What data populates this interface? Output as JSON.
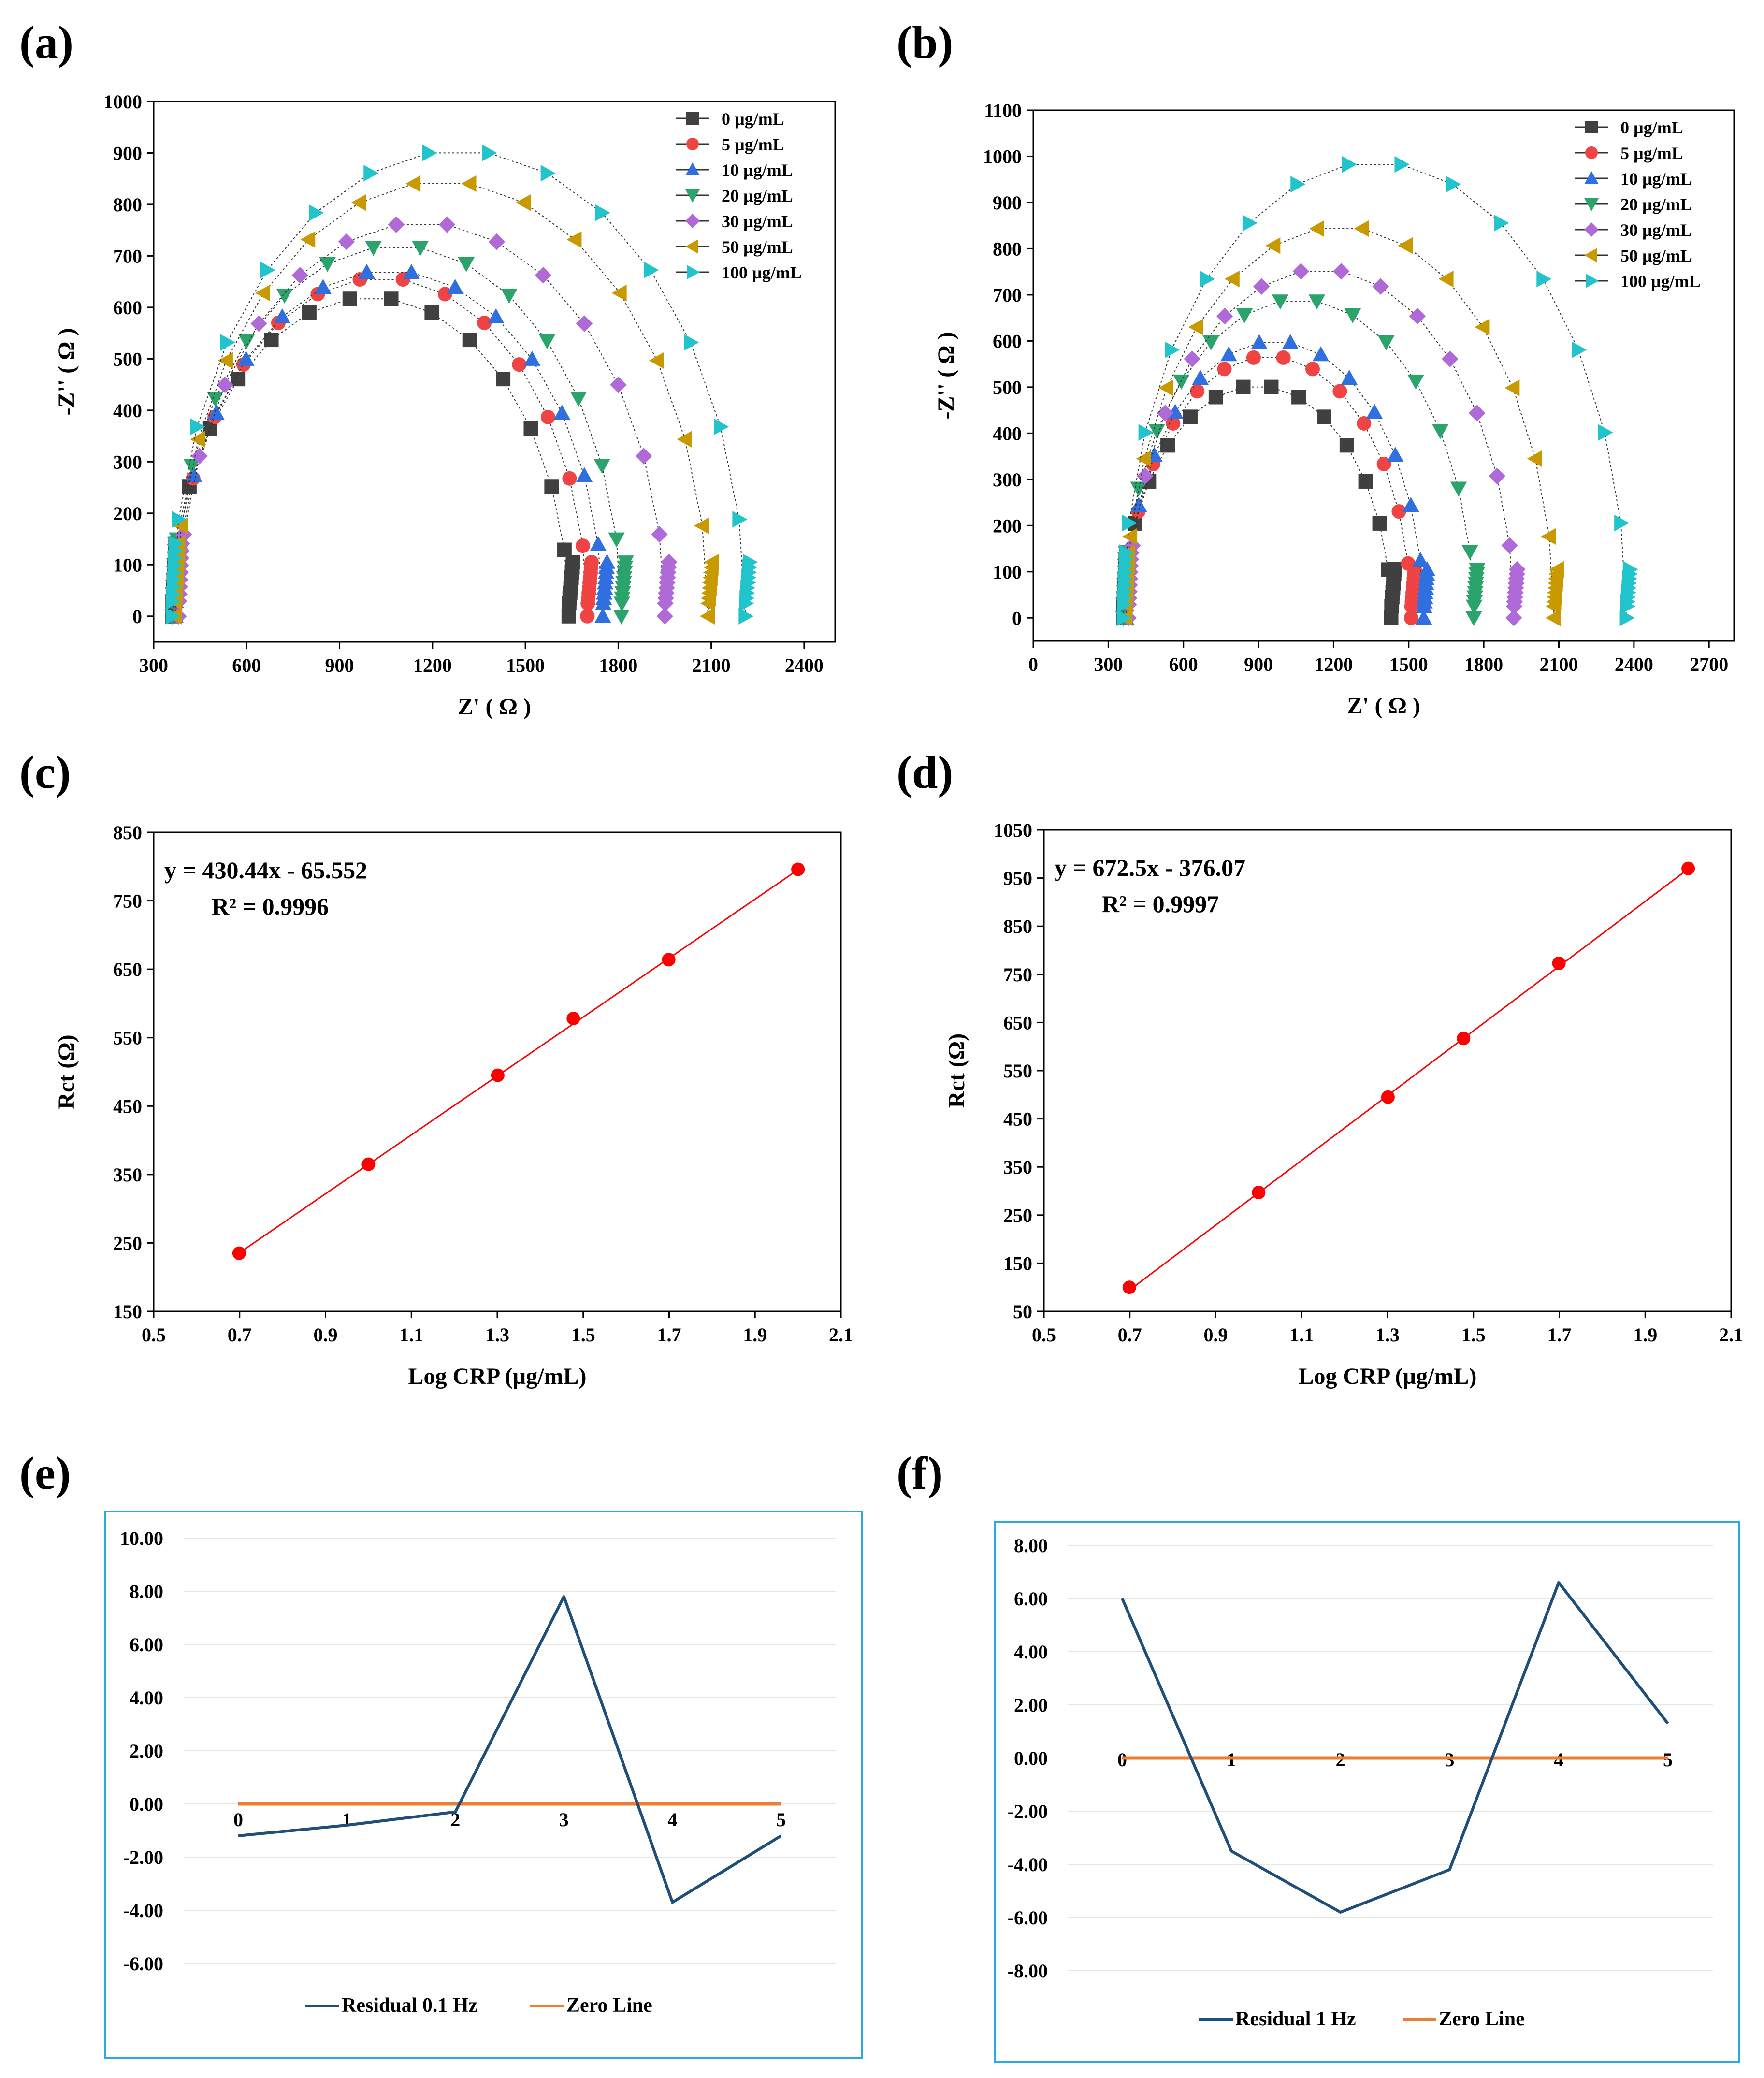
{
  "labels": {
    "a": "(a)",
    "b": "(b)",
    "c": "(c)",
    "d": "(d)",
    "e": "(e)",
    "f": "(f)"
  },
  "colors": {
    "0": "#404040",
    "5": "#f04444",
    "10": "#2f6fe0",
    "20": "#2aa46a",
    "30": "#b06ad8",
    "50": "#c89a00",
    "100": "#22c4cc",
    "fit": "#ff0000",
    "residual": "#1f4e79",
    "zero": "#ed7d31",
    "box": "#29abe2"
  },
  "chart_data": [
    {
      "id": "a",
      "type": "scatter",
      "xlabel": "Z' ( Ω )",
      "ylabel": "-Z'' ( Ω )",
      "xlim": [
        300,
        2500
      ],
      "ylim": [
        -50,
        1000
      ],
      "xticks": [
        "300",
        "600",
        "900",
        "1200",
        "1500",
        "1800",
        "2100",
        "2400"
      ],
      "yticks": [
        "0",
        "100",
        "200",
        "300",
        "400",
        "500",
        "600",
        "700",
        "800",
        "900",
        "1000"
      ],
      "legend_position": "top-right",
      "series": [
        {
          "name": "0 µg/mL",
          "key": "0",
          "marker": "square",
          "start": 360,
          "end": 1640,
          "peak": 620
        },
        {
          "name": "5 µg/mL",
          "key": "5",
          "marker": "circle",
          "start": 370,
          "end": 1700,
          "peak": 658
        },
        {
          "name": "10 µg/mL",
          "key": "10",
          "marker": "triangle-up",
          "start": 370,
          "end": 1750,
          "peak": 672
        },
        {
          "name": "20 µg/mL",
          "key": "20",
          "marker": "triangle-down",
          "start": 360,
          "end": 1810,
          "peak": 720
        },
        {
          "name": "30 µg/mL",
          "key": "30",
          "marker": "diamond",
          "start": 380,
          "end": 1950,
          "peak": 765
        },
        {
          "name": "50 µg/mL",
          "key": "50",
          "marker": "triangle-left",
          "start": 370,
          "end": 2090,
          "peak": 845
        },
        {
          "name": "100 µg/mL",
          "key": "100",
          "marker": "triangle-right",
          "start": 360,
          "end": 2210,
          "peak": 905
        }
      ]
    },
    {
      "id": "b",
      "type": "scatter",
      "xlabel": "Z' ( Ω )",
      "ylabel": "-Z'' ( Ω )",
      "xlim": [
        0,
        2800
      ],
      "ylim": [
        -50,
        1100
      ],
      "xticks": [
        "0",
        "300",
        "600",
        "900",
        "1200",
        "1500",
        "1800",
        "2100",
        "2400",
        "2700"
      ],
      "yticks": [
        "0",
        "100",
        "200",
        "300",
        "400",
        "500",
        "600",
        "700",
        "800",
        "900",
        "1000",
        "1100"
      ],
      "legend_position": "top-right",
      "series": [
        {
          "name": "0 µg/mL",
          "key": "0",
          "marker": "square",
          "start": 360,
          "end": 1430,
          "peak": 503
        },
        {
          "name": "5 µg/mL",
          "key": "5",
          "marker": "circle",
          "start": 370,
          "end": 1510,
          "peak": 567
        },
        {
          "name": "10 µg/mL",
          "key": "10",
          "marker": "triangle-up",
          "start": 370,
          "end": 1560,
          "peak": 600
        },
        {
          "name": "20 µg/mL",
          "key": "20",
          "marker": "triangle-down",
          "start": 360,
          "end": 1760,
          "peak": 690
        },
        {
          "name": "30 µg/mL",
          "key": "30",
          "marker": "diamond",
          "start": 380,
          "end": 1920,
          "peak": 755
        },
        {
          "name": "50 µg/mL",
          "key": "50",
          "marker": "triangle-left",
          "start": 370,
          "end": 2080,
          "peak": 848
        },
        {
          "name": "100 µg/mL",
          "key": "100",
          "marker": "triangle-right",
          "start": 360,
          "end": 2370,
          "peak": 988
        }
      ]
    },
    {
      "id": "c",
      "type": "scatter",
      "xlabel": "Log CRP (µg/mL)",
      "ylabel": "Rct (Ω)",
      "xlim": [
        0.5,
        2.1
      ],
      "ylim": [
        150,
        850
      ],
      "xticks": [
        "0.5",
        "0.7",
        "0.9",
        "1.1",
        "1.3",
        "1.5",
        "1.7",
        "1.9",
        "2.1"
      ],
      "yticks": [
        "150",
        "250",
        "350",
        "450",
        "550",
        "650",
        "750",
        "850"
      ],
      "equation": "y = 430.44x - 65.552",
      "r2": "R² = 0.9996",
      "fit": {
        "slope": 430.44,
        "intercept": -65.552
      },
      "x": [
        0.699,
        1.0,
        1.301,
        1.477,
        1.699,
        2.0
      ],
      "y": [
        235,
        365,
        495,
        578,
        664,
        796
      ]
    },
    {
      "id": "d",
      "type": "scatter",
      "xlabel": "Log CRP (µg/mL)",
      "ylabel": "Rct (Ω)",
      "xlim": [
        0.5,
        2.1
      ],
      "ylim": [
        50,
        1050
      ],
      "xticks": [
        "0.5",
        "0.7",
        "0.9",
        "1.1",
        "1.3",
        "1.5",
        "1.7",
        "1.9",
        "2.1"
      ],
      "yticks": [
        "50",
        "150",
        "250",
        "350",
        "450",
        "550",
        "650",
        "750",
        "850",
        "950",
        "1050"
      ],
      "equation": "y = 672.5x - 376.07",
      "r2": "R² = 0.9997",
      "fit": {
        "slope": 672.5,
        "intercept": -376.07
      },
      "x": [
        0.699,
        1.0,
        1.301,
        1.477,
        1.699,
        2.0
      ],
      "y": [
        100,
        297,
        495,
        617,
        773,
        970
      ]
    },
    {
      "id": "e",
      "type": "line",
      "x": [
        "0",
        "1",
        "2",
        "3",
        "4",
        "5"
      ],
      "ylim": [
        -6,
        10
      ],
      "yticks": [
        "10.00",
        "8.00",
        "6.00",
        "4.00",
        "2.00",
        "0.00",
        "-2.00",
        "-4.00",
        "-6.00"
      ],
      "legend_position": "bottom",
      "series": [
        {
          "name": "Residual 0.1 Hz",
          "values": [
            -1.2,
            -0.8,
            -0.3,
            7.8,
            -3.7,
            -1.2
          ]
        },
        {
          "name": "Zero Line",
          "values": [
            0,
            0,
            0,
            0,
            0,
            0
          ]
        }
      ]
    },
    {
      "id": "f",
      "type": "line",
      "x": [
        "0",
        "1",
        "2",
        "3",
        "4",
        "5"
      ],
      "ylim": [
        -8,
        8
      ],
      "yticks": [
        "8.00",
        "6.00",
        "4.00",
        "2.00",
        "0.00",
        "-2.00",
        "-4.00",
        "-6.00",
        "-8.00"
      ],
      "legend_position": "bottom",
      "series": [
        {
          "name": "Residual 1 Hz",
          "values": [
            6.0,
            -3.5,
            -5.8,
            -4.2,
            6.6,
            1.3
          ]
        },
        {
          "name": "Zero Line",
          "values": [
            0,
            0,
            0,
            0,
            0,
            0
          ]
        }
      ]
    }
  ]
}
